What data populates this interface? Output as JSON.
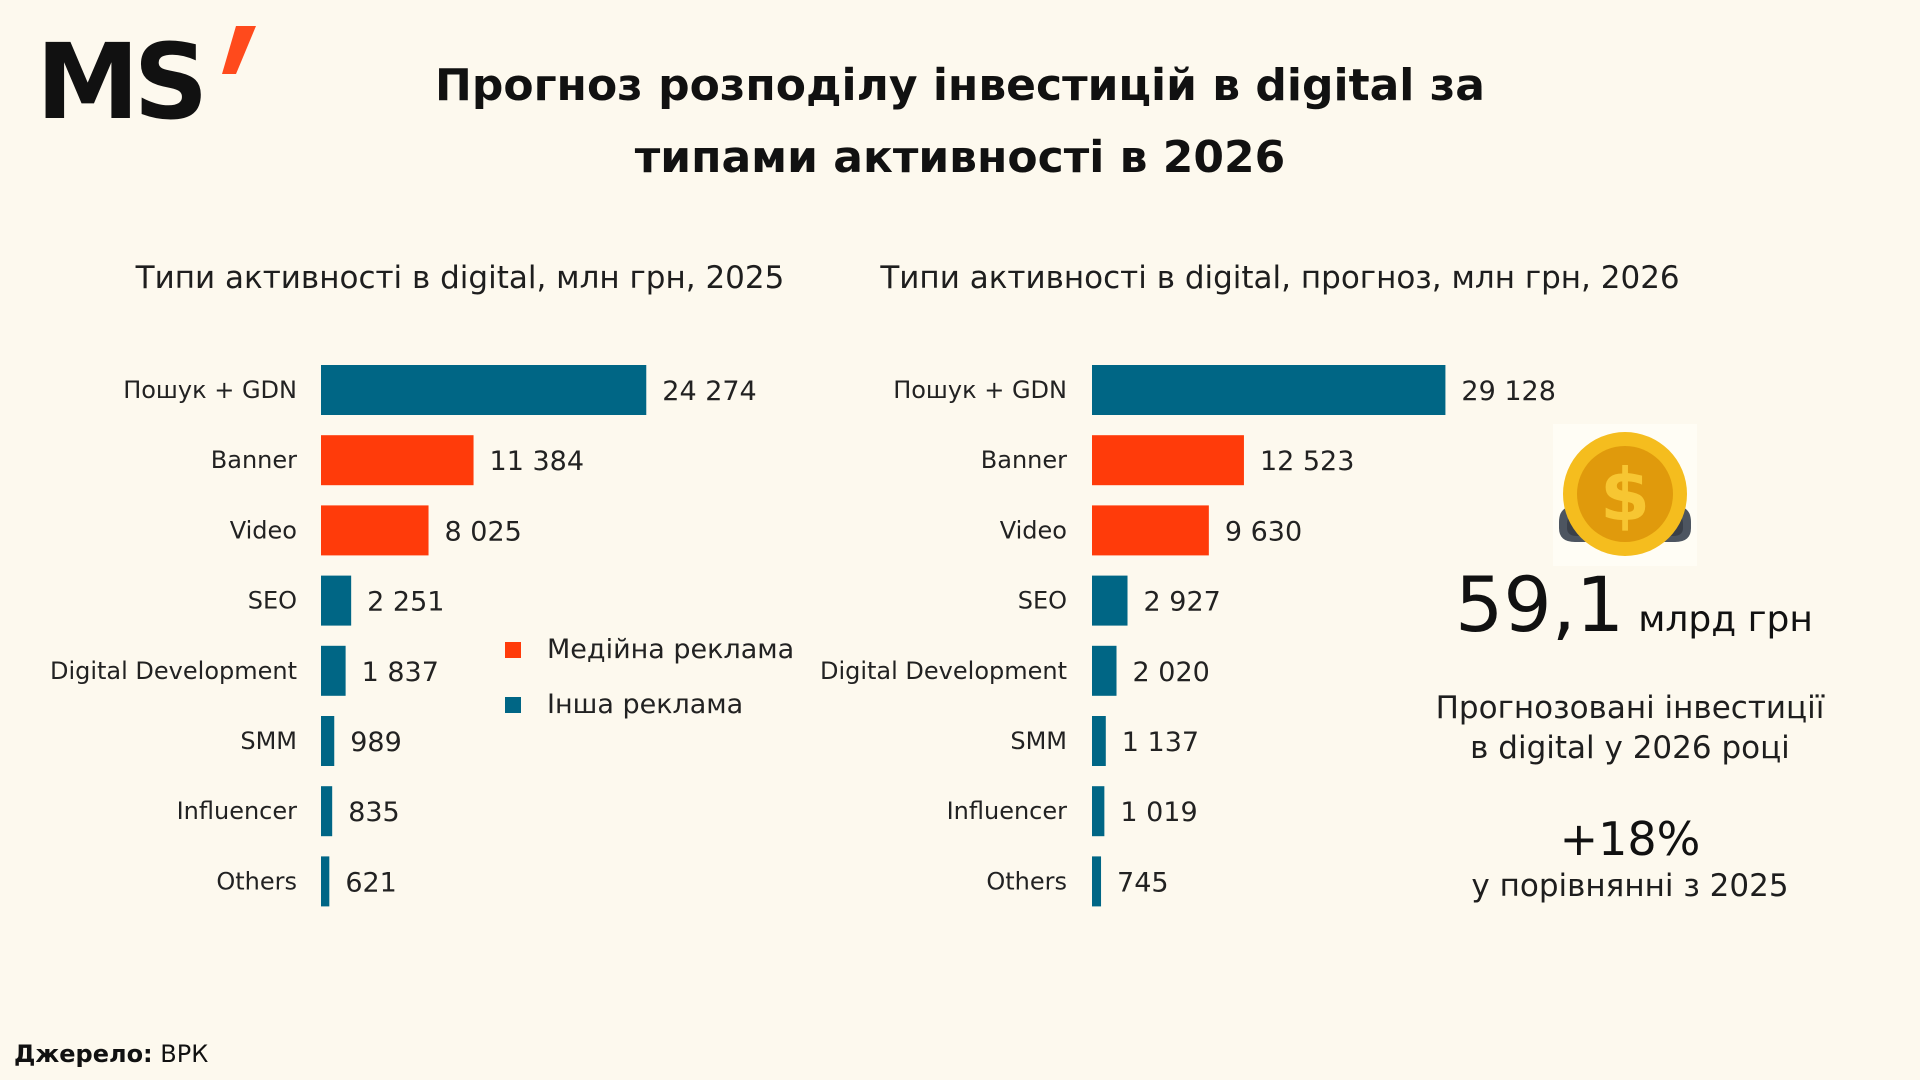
{
  "brand": {
    "logo_text": "MS",
    "logo_accent": "#ff4a1c",
    "logo_color": "#111111"
  },
  "title": {
    "line1": "Прогноз розподілу інвестицій в digital за",
    "line2": "типами активності в 2026"
  },
  "colors": {
    "media": "#ff3b0a",
    "other": "#006685",
    "background": "#fdf9ee"
  },
  "legend": [
    {
      "label": "Медійна реклама",
      "color": "#ff3b0a"
    },
    {
      "label": "Інша реклама",
      "color": "#006685"
    }
  ],
  "chart_data": [
    {
      "type": "bar",
      "orientation": "horizontal",
      "title": "Типи активності в digital, млн грн,  2025",
      "categories": [
        "Пошук + GDN",
        "Banner",
        "Video",
        "SEO",
        "Digital Development",
        "SMM",
        "Influencer",
        "Others"
      ],
      "values": [
        24274,
        11384,
        8025,
        2251,
        1837,
        989,
        835,
        621
      ],
      "value_labels": [
        "24 274",
        "11 384",
        "8 025",
        "2 251",
        "1 837",
        "989",
        "835",
        "621"
      ],
      "groups": [
        "other",
        "media",
        "media",
        "other",
        "other",
        "other",
        "other",
        "other"
      ],
      "xlim": [
        0,
        30000
      ],
      "grid": false
    },
    {
      "type": "bar",
      "orientation": "horizontal",
      "title": "Типи активності в digital, прогноз, млн грн,  2026",
      "categories": [
        "Пошук + GDN",
        "Banner",
        "Video",
        "SEO",
        "Digital Development",
        "SMM",
        "Influencer",
        "Others"
      ],
      "values": [
        29128,
        12523,
        9630,
        2927,
        2020,
        1137,
        1019,
        745
      ],
      "value_labels": [
        "29 128",
        "12 523",
        "9 630",
        "2 927",
        "2 020",
        "1 137",
        "1 019",
        "745"
      ],
      "groups": [
        "other",
        "media",
        "media",
        "other",
        "other",
        "other",
        "other",
        "other"
      ],
      "xlim": [
        0,
        30000
      ],
      "grid": false
    }
  ],
  "summary": {
    "value": "59,1",
    "unit": "млрд грн",
    "description": "Прогнозовані інвестиції\nв digital у 2026 році",
    "growth": "+18%",
    "growth_caption": "у порівнянні з 2025"
  },
  "source": {
    "label": "Джерело:",
    "value": "ВРК"
  }
}
